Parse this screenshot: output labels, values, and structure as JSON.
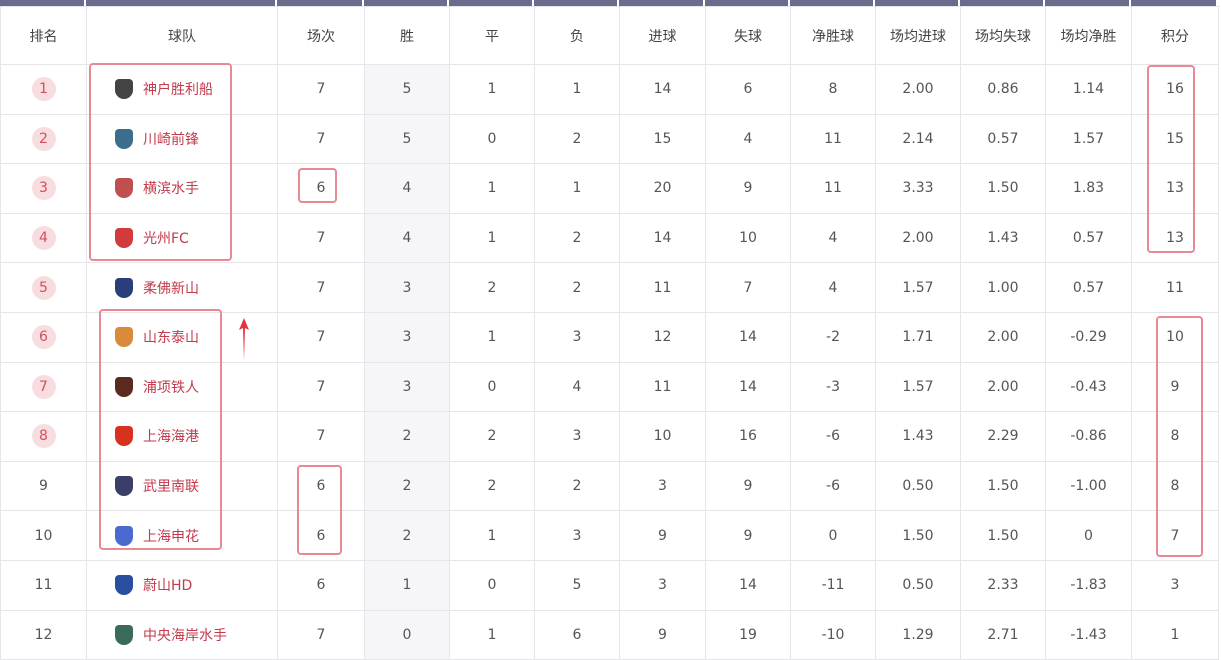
{
  "headers": [
    "排名",
    "球队",
    "场次",
    "胜",
    "平",
    "负",
    "进球",
    "失球",
    "净胜球",
    "场均进球",
    "场均失球",
    "场均净胜",
    "积分"
  ],
  "rows": [
    {
      "rank": "1",
      "team": "神户胜利船",
      "logo": "#444",
      "p": "7",
      "w": "5",
      "d": "1",
      "l": "1",
      "gf": "14",
      "ga": "6",
      "gd": "8",
      "agf": "2.00",
      "aga": "0.86",
      "agd": "1.14",
      "pts": "16"
    },
    {
      "rank": "2",
      "team": "川崎前锋",
      "logo": "#3a6e8c",
      "p": "7",
      "w": "5",
      "d": "0",
      "l": "2",
      "gf": "15",
      "ga": "4",
      "gd": "11",
      "agf": "2.14",
      "aga": "0.57",
      "agd": "1.57",
      "pts": "15"
    },
    {
      "rank": "3",
      "team": "横滨水手",
      "logo": "#c05050",
      "p": "6",
      "w": "4",
      "d": "1",
      "l": "1",
      "gf": "20",
      "ga": "9",
      "gd": "11",
      "agf": "3.33",
      "aga": "1.50",
      "agd": "1.83",
      "pts": "13"
    },
    {
      "rank": "4",
      "team": "光州FC",
      "logo": "#d23b3b",
      "p": "7",
      "w": "4",
      "d": "1",
      "l": "2",
      "gf": "14",
      "ga": "10",
      "gd": "4",
      "agf": "2.00",
      "aga": "1.43",
      "agd": "0.57",
      "pts": "13"
    },
    {
      "rank": "5",
      "team": "柔佛新山",
      "logo": "#2a3f7a",
      "p": "7",
      "w": "3",
      "d": "2",
      "l": "2",
      "gf": "11",
      "ga": "7",
      "gd": "4",
      "agf": "1.57",
      "aga": "1.00",
      "agd": "0.57",
      "pts": "11"
    },
    {
      "rank": "6",
      "team": "山东泰山",
      "logo": "#d98a3a",
      "p": "7",
      "w": "3",
      "d": "1",
      "l": "3",
      "gf": "12",
      "ga": "14",
      "gd": "-2",
      "agf": "1.71",
      "aga": "2.00",
      "agd": "-0.29",
      "pts": "10"
    },
    {
      "rank": "7",
      "team": "浦项铁人",
      "logo": "#5a2a1e",
      "p": "7",
      "w": "3",
      "d": "0",
      "l": "4",
      "gf": "11",
      "ga": "14",
      "gd": "-3",
      "agf": "1.57",
      "aga": "2.00",
      "agd": "-0.43",
      "pts": "9"
    },
    {
      "rank": "8",
      "team": "上海海港",
      "logo": "#d8321e",
      "p": "7",
      "w": "2",
      "d": "2",
      "l": "3",
      "gf": "10",
      "ga": "16",
      "gd": "-6",
      "agf": "1.43",
      "aga": "2.29",
      "agd": "-0.86",
      "pts": "8"
    },
    {
      "rank": "9",
      "team": "武里南联",
      "logo": "#3a3f6a",
      "p": "6",
      "w": "2",
      "d": "2",
      "l": "2",
      "gf": "3",
      "ga": "9",
      "gd": "-6",
      "agf": "0.50",
      "aga": "1.50",
      "agd": "-1.00",
      "pts": "8"
    },
    {
      "rank": "10",
      "team": "上海申花",
      "logo": "#4a6ad0",
      "p": "6",
      "w": "2",
      "d": "1",
      "l": "3",
      "gf": "9",
      "ga": "9",
      "gd": "0",
      "agf": "1.50",
      "aga": "1.50",
      "agd": "0",
      "pts": "7"
    },
    {
      "rank": "11",
      "team": "蔚山HD",
      "logo": "#2a4ea0",
      "p": "6",
      "w": "1",
      "d": "0",
      "l": "5",
      "gf": "3",
      "ga": "14",
      "gd": "-11",
      "agf": "0.50",
      "aga": "2.33",
      "agd": "-1.83",
      "pts": "3"
    },
    {
      "rank": "12",
      "team": "中央海岸水手",
      "logo": "#3a6a5a",
      "p": "7",
      "w": "0",
      "d": "1",
      "l": "6",
      "gf": "9",
      "ga": "19",
      "gd": "-10",
      "agf": "1.29",
      "aga": "2.71",
      "agd": "-1.43",
      "pts": "1"
    }
  ],
  "highlight_ranks": 8,
  "colors": {
    "header_bar": "#6b6a8f",
    "team_text": "#c23a4c",
    "annotation": "#e88a93",
    "rank_badge": "#f8dde0"
  }
}
